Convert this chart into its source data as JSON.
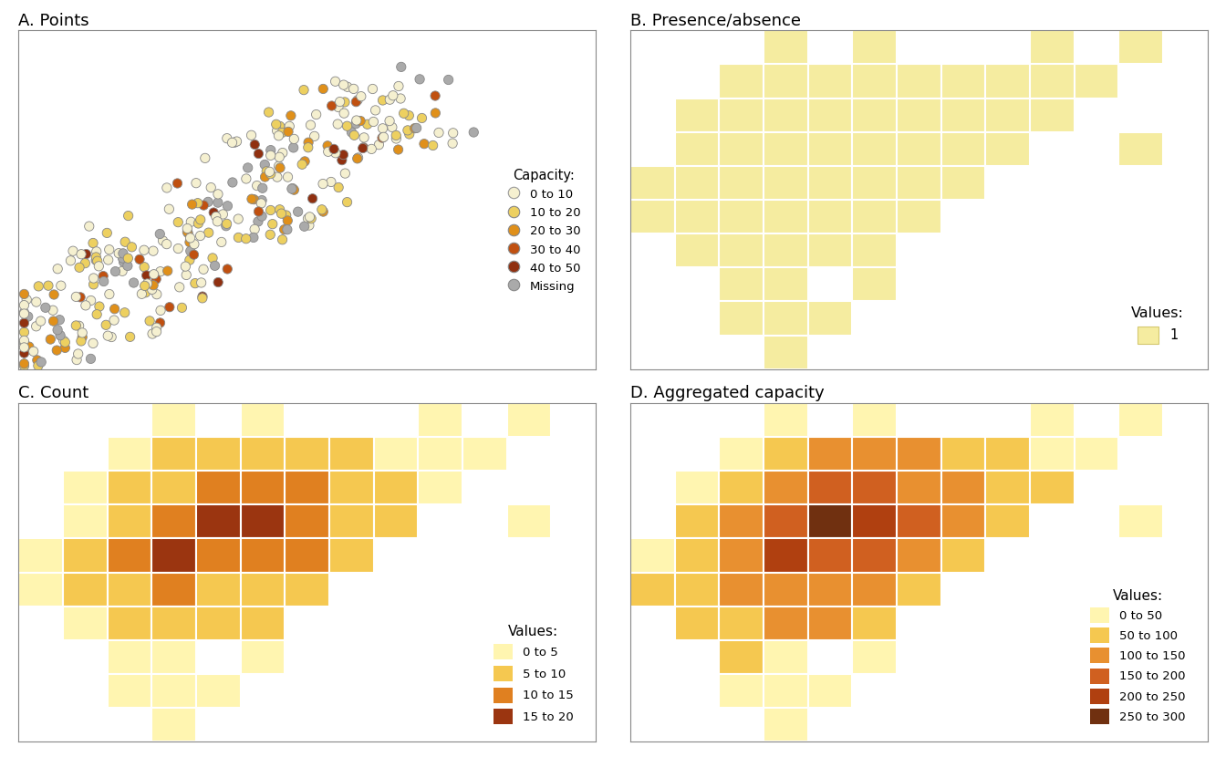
{
  "title_A": "A. Points",
  "title_B": "B. Presence/absence",
  "title_C": "C. Count",
  "title_D": "D. Aggregated capacity",
  "cap_colors": {
    "0 to 10": "#F5F0D0",
    "10 to 20": "#EDD060",
    "20 to 30": "#E0901A",
    "30 to 40": "#C05010",
    "40 to 50": "#903010",
    "Missing": "#AAAAAA"
  },
  "presence_color": "#F5ECA0",
  "count_colors": [
    "#FFF5B0",
    "#F5C850",
    "#E08020",
    "#9B3510"
  ],
  "count_labels": [
    "0 to 5",
    "5 to 10",
    "10 to 15",
    "15 to 20"
  ],
  "agg_colors": [
    "#FFF5B0",
    "#F5C850",
    "#E89030",
    "#D06020",
    "#B04010",
    "#703010"
  ],
  "agg_labels": [
    "0 to 50",
    "50 to 100",
    "100 to 150",
    "150 to 200",
    "200 to 250",
    "250 to 300"
  ],
  "grid_cols": 13,
  "grid_rows": 10,
  "background": "#FFFFFF",
  "presence_data": [
    [
      0,
      0,
      0,
      1,
      0,
      1,
      0,
      0,
      0,
      1,
      0,
      1,
      0
    ],
    [
      0,
      0,
      1,
      1,
      1,
      1,
      1,
      1,
      1,
      1,
      1,
      0,
      0
    ],
    [
      0,
      1,
      1,
      1,
      1,
      1,
      1,
      1,
      1,
      1,
      0,
      0,
      0
    ],
    [
      0,
      1,
      1,
      1,
      1,
      1,
      1,
      1,
      1,
      0,
      0,
      1,
      0
    ],
    [
      1,
      1,
      1,
      1,
      1,
      1,
      1,
      1,
      0,
      0,
      0,
      0,
      0
    ],
    [
      1,
      1,
      1,
      1,
      1,
      1,
      1,
      0,
      0,
      0,
      0,
      0,
      0
    ],
    [
      0,
      1,
      1,
      1,
      1,
      1,
      0,
      0,
      0,
      0,
      0,
      0,
      0
    ],
    [
      0,
      0,
      1,
      1,
      0,
      1,
      0,
      0,
      0,
      0,
      0,
      0,
      0
    ],
    [
      0,
      0,
      1,
      1,
      1,
      0,
      0,
      0,
      0,
      0,
      0,
      0,
      0
    ],
    [
      0,
      0,
      0,
      1,
      0,
      0,
      0,
      0,
      0,
      0,
      0,
      0,
      0
    ]
  ],
  "count_data": [
    [
      0,
      0,
      0,
      2,
      0,
      2,
      0,
      0,
      0,
      2,
      0,
      2,
      0
    ],
    [
      0,
      0,
      3,
      5,
      7,
      8,
      7,
      6,
      4,
      3,
      3,
      0,
      0
    ],
    [
      0,
      3,
      6,
      9,
      12,
      13,
      11,
      9,
      7,
      4,
      0,
      0,
      0
    ],
    [
      0,
      4,
      9,
      13,
      18,
      15,
      11,
      9,
      5,
      0,
      0,
      3,
      0
    ],
    [
      3,
      6,
      10,
      15,
      13,
      12,
      10,
      7,
      0,
      0,
      0,
      0,
      0
    ],
    [
      4,
      6,
      9,
      10,
      9,
      8,
      5,
      0,
      0,
      0,
      0,
      0,
      0
    ],
    [
      0,
      4,
      7,
      8,
      7,
      5,
      0,
      0,
      0,
      0,
      0,
      0,
      0
    ],
    [
      0,
      0,
      4,
      3,
      0,
      3,
      0,
      0,
      0,
      0,
      0,
      0,
      0
    ],
    [
      0,
      0,
      3,
      3,
      3,
      0,
      0,
      0,
      0,
      0,
      0,
      0,
      0
    ],
    [
      0,
      0,
      0,
      2,
      0,
      0,
      0,
      0,
      0,
      0,
      0,
      0,
      0
    ]
  ],
  "agg_data": [
    [
      0,
      0,
      0,
      30,
      0,
      30,
      0,
      0,
      0,
      25,
      0,
      25,
      0
    ],
    [
      0,
      0,
      40,
      75,
      100,
      110,
      100,
      80,
      60,
      40,
      40,
      0,
      0
    ],
    [
      0,
      40,
      80,
      120,
      155,
      165,
      145,
      120,
      90,
      55,
      0,
      0,
      0
    ],
    [
      0,
      50,
      100,
      170,
      260,
      210,
      155,
      120,
      75,
      0,
      0,
      40,
      0
    ],
    [
      40,
      70,
      130,
      210,
      185,
      165,
      135,
      95,
      0,
      0,
      0,
      0,
      0
    ],
    [
      55,
      80,
      115,
      145,
      135,
      115,
      75,
      0,
      0,
      0,
      0,
      0,
      0
    ],
    [
      0,
      55,
      90,
      120,
      100,
      80,
      0,
      0,
      0,
      0,
      0,
      0,
      0
    ],
    [
      0,
      0,
      55,
      45,
      0,
      45,
      0,
      0,
      0,
      0,
      0,
      0,
      0
    ],
    [
      0,
      0,
      40,
      40,
      40,
      0,
      0,
      0,
      0,
      0,
      0,
      0,
      0
    ],
    [
      0,
      0,
      0,
      30,
      0,
      0,
      0,
      0,
      0,
      0,
      0,
      0,
      0
    ]
  ]
}
